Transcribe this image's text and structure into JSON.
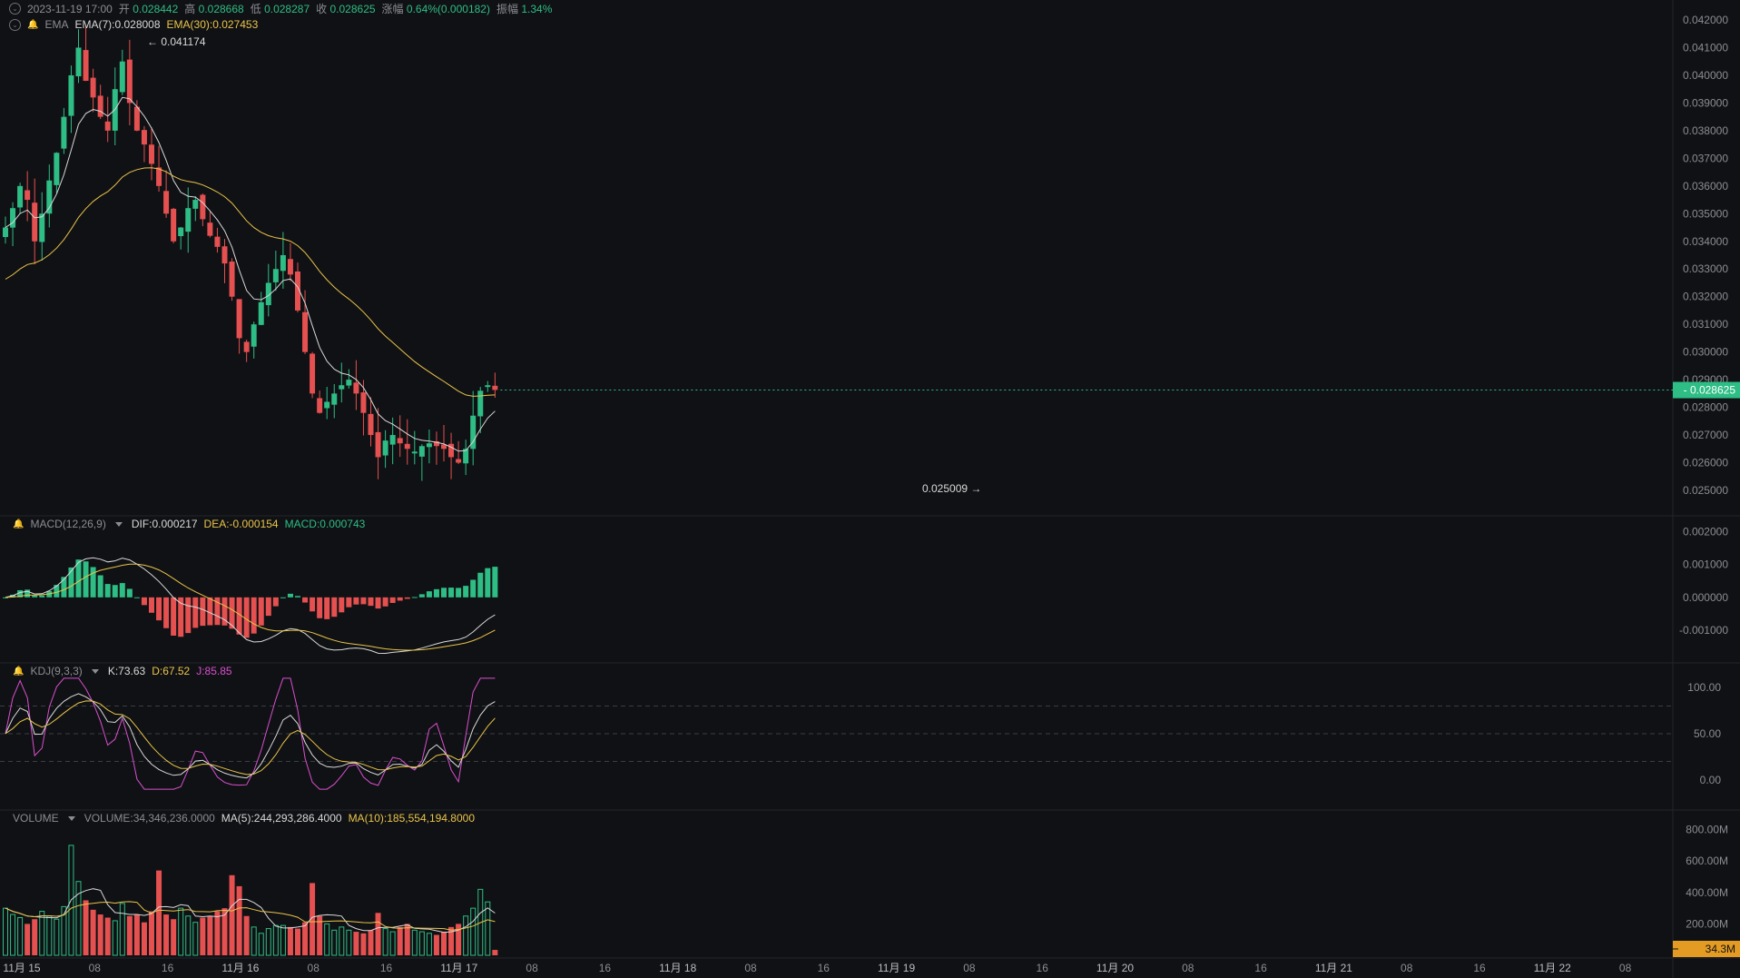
{
  "header": {
    "datetime": "2023-11-19 17:00",
    "open_label": "开",
    "open": "0.028442",
    "high_label": "高",
    "high": "0.028668",
    "low_label": "低",
    "low": "0.028287",
    "close_label": "收",
    "close": "0.028625",
    "change_label": "涨幅",
    "change": "0.64%(0.000182)",
    "amplitude_label": "振幅",
    "amplitude": "1.34%"
  },
  "ema_legend": {
    "name": "EMA",
    "ema7": "EMA(7):0.028008",
    "ema30": "EMA(30):0.027453"
  },
  "macd_legend": {
    "name": "MACD(12,26,9)",
    "dif": "DIF:0.000217",
    "dea": "DEA:-0.000154",
    "macd": "MACD:0.000743"
  },
  "kdj_legend": {
    "name": "KDJ(9,3,3)",
    "k": "K:73.63",
    "d": "D:67.52",
    "j": "J:85.85"
  },
  "volume_legend": {
    "name": "VOLUME",
    "volume": "VOLUME:34,346,236.0000",
    "ma5": "MA(5):244,293,286.4000",
    "ma10": "MA(10):185,554,194.8000"
  },
  "colors": {
    "up": "#2ebd85",
    "down": "#e55050",
    "ema7": "#d9d9d9",
    "ema30": "#e9c44a",
    "j": "#d94fd0",
    "bg": "#101114"
  },
  "chart_data": {
    "type": "candlestick",
    "title": "",
    "interval_hours": 4,
    "price_axis": {
      "min": 0.025,
      "max": 0.042,
      "ticks": [
        "0.042000",
        "0.041000",
        "0.040000",
        "0.039000",
        "0.038000",
        "0.037000",
        "0.036000",
        "0.035000",
        "0.034000",
        "0.033000",
        "0.032000",
        "0.031000",
        "0.030000",
        "0.029000",
        "0.028000",
        "0.027000",
        "0.026000",
        "0.025000"
      ]
    },
    "last_price_label": "0.028625",
    "high_marker": "← 0.041174",
    "low_marker": "0.025009 →",
    "macd_axis": {
      "ticks": [
        "0.002000",
        "0.001000",
        "0.000000",
        "-0.001000"
      ]
    },
    "kdj_axis": {
      "ticks": [
        "100.00",
        "50.00",
        "0.00"
      ],
      "guides": [
        80,
        50,
        20
      ]
    },
    "volume_axis": {
      "ticks": [
        "800.00M",
        "600.00M",
        "400.00M",
        "200.00M"
      ]
    },
    "last_volume_label": "34.3M",
    "x_ticks": [
      "11月 15",
      "08",
      "16",
      "11月 16",
      "08",
      "16",
      "11月 17",
      "08",
      "16",
      "11月 18",
      "08",
      "16",
      "11月 19",
      "08",
      "16",
      "11月 20",
      "08",
      "16",
      "11月 21",
      "08",
      "16",
      "11月 22",
      "08"
    ],
    "close_path": [
      0.0345,
      0.0352,
      0.036,
      0.0355,
      0.034,
      0.035,
      0.0362,
      0.0372,
      0.0385,
      0.04,
      0.041,
      0.0398,
      0.0392,
      0.0385,
      0.038,
      0.0395,
      0.0405,
      0.039,
      0.038,
      0.0375,
      0.0368,
      0.036,
      0.035,
      0.034,
      0.0345,
      0.0352,
      0.0355,
      0.0348,
      0.0342,
      0.0338,
      0.0332,
      0.032,
      0.0305,
      0.03,
      0.031,
      0.0318,
      0.0325,
      0.033,
      0.0335,
      0.0328,
      0.0315,
      0.03,
      0.0285,
      0.0278,
      0.0282,
      0.0285,
      0.0288,
      0.029,
      0.0285,
      0.0278,
      0.027,
      0.0262,
      0.0268,
      0.027,
      0.0267,
      0.0265,
      0.0264,
      0.0266,
      0.0267,
      0.0266,
      0.0265,
      0.0262,
      0.026,
      0.0265,
      0.0277,
      0.0286,
      0.0288,
      0.02863
    ],
    "volume_m": [
      300,
      260,
      240,
      200,
      230,
      280,
      250,
      230,
      310,
      700,
      470,
      350,
      290,
      260,
      240,
      220,
      330,
      250,
      260,
      210,
      280,
      540,
      260,
      230,
      300,
      250,
      210,
      240,
      250,
      280,
      300,
      510,
      440,
      250,
      180,
      140,
      170,
      190,
      190,
      180,
      170,
      210,
      460,
      250,
      200,
      160,
      180,
      160,
      150,
      140,
      160,
      270,
      170,
      150,
      180,
      200,
      160,
      150,
      140,
      130,
      150,
      180,
      200,
      250,
      300,
      420,
      340,
      34.35
    ]
  }
}
